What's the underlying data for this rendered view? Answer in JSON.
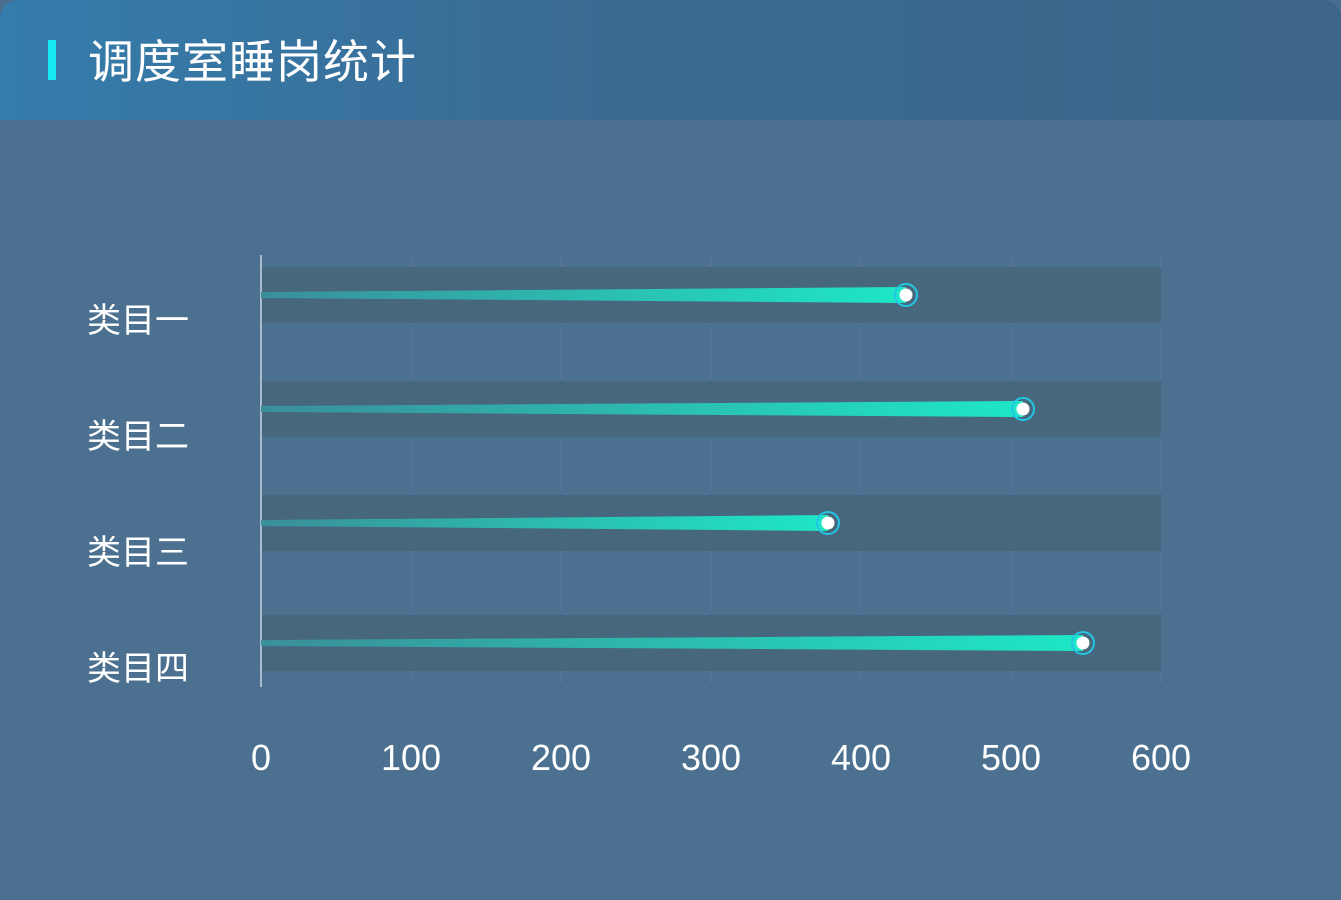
{
  "header": {
    "title": "调度室睡岗统计"
  },
  "chart_data": {
    "type": "bar",
    "orientation": "horizontal",
    "title": "调度室睡岗统计",
    "categories": [
      "类目一",
      "类目二",
      "类目三",
      "类目四"
    ],
    "values": [
      430,
      508,
      378,
      548
    ],
    "xlim": [
      0,
      600
    ],
    "xticks": [
      0,
      100,
      200,
      300,
      400,
      500,
      600
    ],
    "xtick_labels": [
      "0",
      "100",
      "200",
      "300",
      "400",
      "500",
      "600"
    ],
    "grid": true,
    "colors": {
      "bar_start": "#3a8f9a",
      "bar_end": "#1ee7c6",
      "track": "#47677d",
      "marker_ring": "#22c7e6",
      "marker_dot": "#ffffff"
    }
  }
}
